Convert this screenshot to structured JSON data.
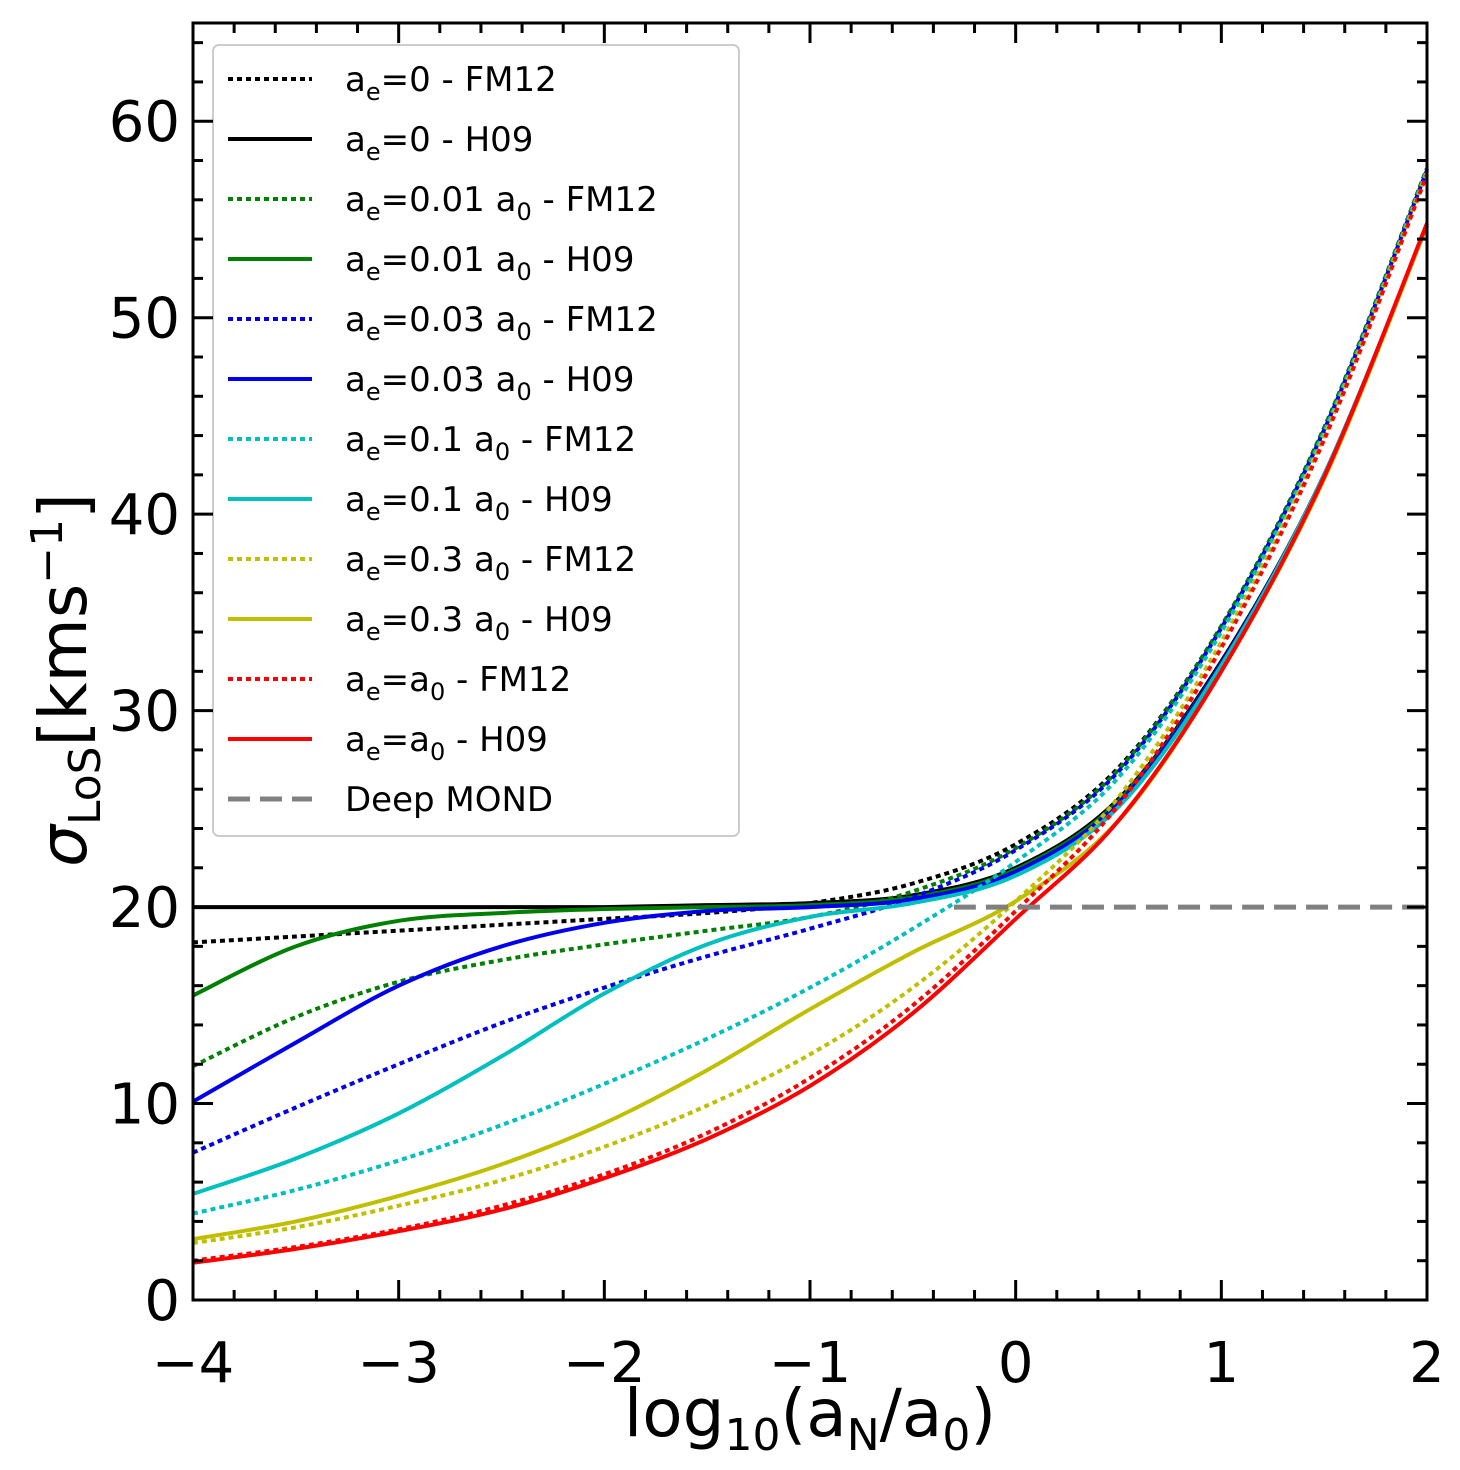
{
  "chart_data": {
    "type": "line",
    "title": "",
    "xlabel": {
      "base": "log",
      "sub1": "10",
      "mid": "(a",
      "sub2": "N",
      "slash": "/a",
      "sub3": "0",
      "end": ")"
    },
    "ylabel": {
      "sym": "σ",
      "sub": "LoS",
      "main": "[kms",
      "sup": "−1",
      "end": "]"
    },
    "xlim": [
      -4,
      2
    ],
    "ylim": [
      0,
      65
    ],
    "xticks": [
      -4,
      -3,
      -2,
      -1,
      0,
      1,
      2
    ],
    "xtick_labels": [
      "−4",
      "−3",
      "−2",
      "−1",
      "0",
      "1",
      "2"
    ],
    "yticks": [
      0,
      10,
      20,
      30,
      40,
      50,
      60
    ],
    "ytick_labels": [
      "0",
      "10",
      "20",
      "30",
      "40",
      "50",
      "60"
    ],
    "grid": false,
    "legend_position": "top-left",
    "series": [
      {
        "name": "ae=0 - FM12",
        "label": {
          "a": "a",
          "sub": "e",
          "rest": "=0 - FM12"
        },
        "color": "#000000",
        "style": "dotted",
        "x": [
          -4,
          -3.5,
          -3,
          -2.5,
          -2,
          -1.5,
          -1,
          -0.5,
          0,
          0.5,
          1,
          1.5,
          2
        ],
        "y": [
          18.2,
          18.5,
          18.8,
          19.1,
          19.4,
          19.7,
          20.2,
          21.2,
          23.2,
          27.1,
          34.3,
          44.4,
          57.6
        ]
      },
      {
        "name": "ae=0 - H09",
        "label": {
          "a": "a",
          "sub": "e",
          "rest": "=0 - H09"
        },
        "color": "#000000",
        "style": "solid",
        "x": [
          -4,
          -3.5,
          -3,
          -2.5,
          -2,
          -1.5,
          -1,
          -0.5,
          0,
          0.5,
          1,
          1.5,
          2
        ],
        "y": [
          20.0,
          20.0,
          20.0,
          20.0,
          20.0,
          20.1,
          20.2,
          20.6,
          22.0,
          25.5,
          32.5,
          42.0,
          54.7
        ]
      },
      {
        "name": "ae=0.01 a0 - FM12",
        "label": {
          "a": "a",
          "sub": "e",
          "rest": "=0.01 a",
          "sub2": "0",
          "rest2": " - FM12"
        },
        "color": "#008000",
        "style": "dotted",
        "x": [
          -4,
          -3.5,
          -3,
          -2.5,
          -2,
          -1.5,
          -1,
          -0.5,
          0,
          0.5,
          1,
          1.5,
          2
        ],
        "y": [
          11.9,
          14.4,
          16.2,
          17.3,
          18.1,
          18.8,
          19.5,
          20.8,
          23.0,
          27.0,
          34.3,
          44.4,
          57.6
        ]
      },
      {
        "name": "ae=0.01 a0 - H09",
        "label": {
          "a": "a",
          "sub": "e",
          "rest": "=0.01 a",
          "sub2": "0",
          "rest2": " - H09"
        },
        "color": "#008000",
        "style": "solid",
        "x": [
          -4,
          -3.5,
          -3,
          -2.5,
          -2,
          -1.5,
          -1,
          -0.5,
          0,
          0.5,
          1,
          1.5,
          2
        ],
        "y": [
          15.5,
          18.0,
          19.3,
          19.7,
          19.9,
          20.0,
          20.1,
          20.5,
          21.9,
          25.4,
          32.4,
          42.0,
          54.7
        ]
      },
      {
        "name": "ae=0.03 a0 - FM12",
        "label": {
          "a": "a",
          "sub": "e",
          "rest": "=0.03 a",
          "sub2": "0",
          "rest2": " - FM12"
        },
        "color": "#0000ee",
        "style": "dotted",
        "x": [
          -4,
          -3.5,
          -3,
          -2.5,
          -2,
          -1.5,
          -1,
          -0.5,
          0,
          0.5,
          1,
          1.5,
          2
        ],
        "y": [
          7.5,
          9.8,
          12.0,
          14.1,
          15.9,
          17.5,
          18.9,
          20.5,
          22.9,
          26.9,
          34.2,
          44.3,
          57.5
        ]
      },
      {
        "name": "ae=0.03 a0 - H09",
        "label": {
          "a": "a",
          "sub": "e",
          "rest": "=0.03 a",
          "sub2": "0",
          "rest2": " - H09"
        },
        "color": "#0000ee",
        "style": "solid",
        "x": [
          -4,
          -3.5,
          -3,
          -2.5,
          -2,
          -1.5,
          -1,
          -0.5,
          0,
          0.5,
          1,
          1.5,
          2
        ],
        "y": [
          10.1,
          13.1,
          16.0,
          18.0,
          19.2,
          19.8,
          20.0,
          20.4,
          21.8,
          25.3,
          32.4,
          42.0,
          54.7
        ]
      },
      {
        "name": "ae=0.1 a0 - FM12",
        "label": {
          "a": "a",
          "sub": "e",
          "rest": "=0.1 a",
          "sub2": "0",
          "rest2": " - FM12"
        },
        "color": "#00bfbf",
        "style": "dotted",
        "x": [
          -4,
          -3.5,
          -3,
          -2.5,
          -2,
          -1.5,
          -1,
          -0.5,
          0,
          0.5,
          1,
          1.5,
          2
        ],
        "y": [
          4.4,
          5.6,
          7.1,
          8.9,
          11.0,
          13.3,
          15.9,
          18.9,
          22.3,
          26.6,
          34.0,
          44.2,
          57.5
        ]
      },
      {
        "name": "ae=0.1 a0 - H09",
        "label": {
          "a": "a",
          "sub": "e",
          "rest": "=0.1 a",
          "sub2": "0",
          "rest2": " - H09"
        },
        "color": "#00bfbf",
        "style": "solid",
        "x": [
          -4,
          -3.5,
          -3,
          -2.5,
          -2,
          -1.5,
          -1,
          -0.5,
          0,
          0.5,
          1,
          1.5,
          2
        ],
        "y": [
          5.4,
          7.2,
          9.5,
          12.4,
          15.6,
          18.1,
          19.5,
          20.2,
          21.6,
          25.1,
          32.3,
          42.0,
          54.7
        ]
      },
      {
        "name": "ae=0.3 a0 - FM12",
        "label": {
          "a": "a",
          "sub": "e",
          "rest": "=0.3 a",
          "sub2": "0",
          "rest2": " - FM12"
        },
        "color": "#bfbf00",
        "style": "dotted",
        "x": [
          -4,
          -3.5,
          -3,
          -2.5,
          -2,
          -1.5,
          -1,
          -0.5,
          0,
          0.5,
          1,
          1.5,
          2
        ],
        "y": [
          2.9,
          3.7,
          4.8,
          6.1,
          7.8,
          9.9,
          12.5,
          15.9,
          20.3,
          25.6,
          33.5,
          44.0,
          57.4
        ]
      },
      {
        "name": "ae=0.3 a0 - H09",
        "label": {
          "a": "a",
          "sub": "e",
          "rest": "=0.3 a",
          "sub2": "0",
          "rest2": " - H09"
        },
        "color": "#bfbf00",
        "style": "solid",
        "x": [
          -4,
          -3.5,
          -3,
          -2.5,
          -2,
          -1.5,
          -1,
          -0.5,
          0,
          0.5,
          1,
          1.5,
          2
        ],
        "y": [
          3.1,
          4.0,
          5.3,
          6.9,
          9.0,
          11.7,
          14.8,
          17.7,
          20.3,
          24.4,
          32.0,
          41.8,
          54.7
        ]
      },
      {
        "name": "ae=a0 - FM12",
        "label": {
          "a": "a",
          "sub": "e",
          "rest": "=a",
          "sub2": "0",
          "rest2": " - FM12"
        },
        "color": "#ff0000",
        "style": "dotted",
        "x": [
          -4,
          -3.5,
          -3,
          -2.5,
          -2,
          -1.5,
          -1,
          -0.5,
          0,
          0.5,
          1,
          1.5,
          2
        ],
        "y": [
          2.0,
          2.7,
          3.6,
          4.8,
          6.4,
          8.5,
          11.3,
          15.0,
          19.8,
          25.2,
          33.2,
          43.8,
          57.3
        ]
      },
      {
        "name": "ae=a0 - H09",
        "label": {
          "a": "a",
          "sub": "e",
          "rest": "=a",
          "sub2": "0",
          "rest2": " - H09"
        },
        "color": "#ff0000",
        "style": "solid",
        "x": [
          -4,
          -3.5,
          -3,
          -2.5,
          -2,
          -1.5,
          -1,
          -0.5,
          0,
          0.5,
          1,
          1.5,
          2
        ],
        "y": [
          1.9,
          2.6,
          3.5,
          4.6,
          6.2,
          8.2,
          10.9,
          14.6,
          19.4,
          24.4,
          32.0,
          41.9,
          54.8
        ]
      },
      {
        "name": "Deep MOND",
        "label": {
          "a": "Deep MOND"
        },
        "color": "#808080",
        "style": "dashed",
        "x": [
          -0.3,
          2
        ],
        "y": [
          20.0,
          20.0
        ]
      }
    ]
  }
}
